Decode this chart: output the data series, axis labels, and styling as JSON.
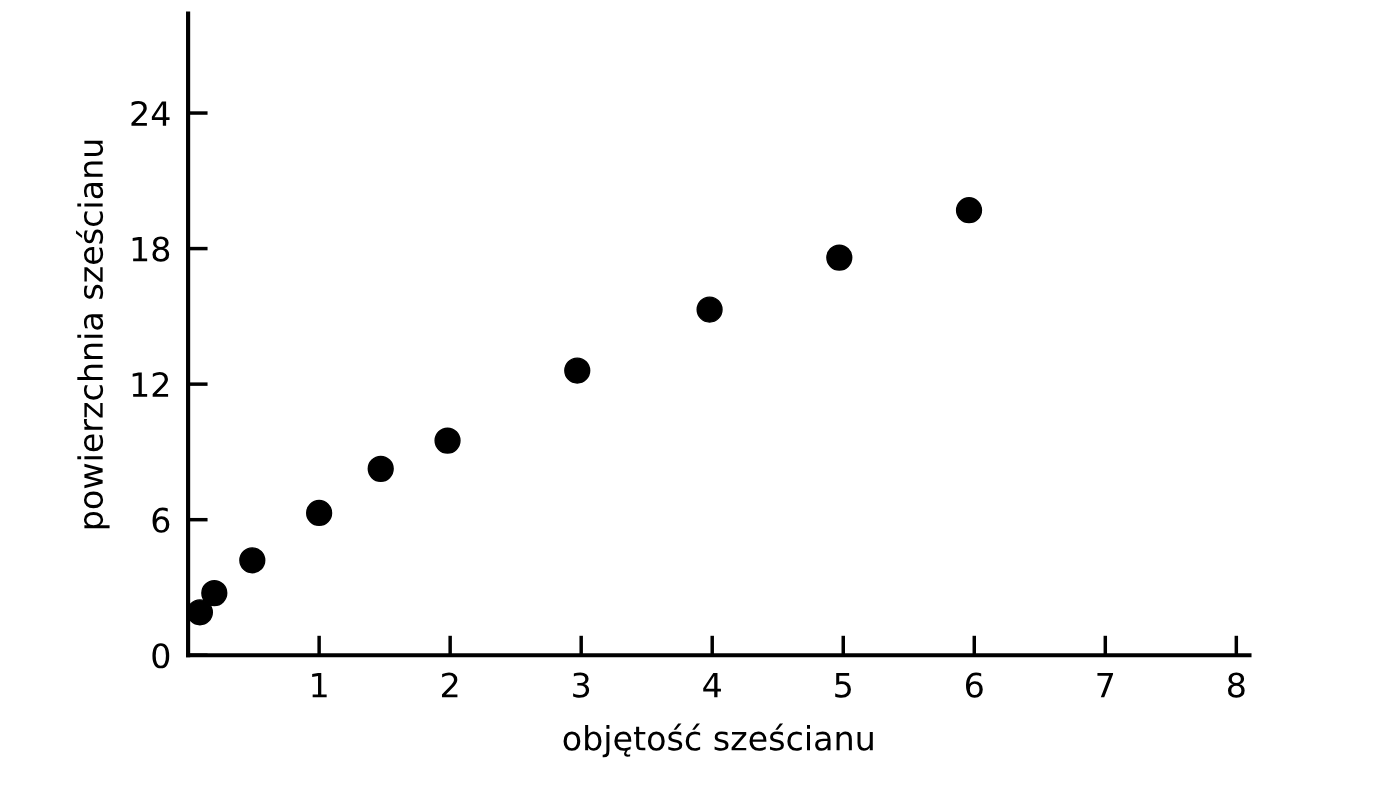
{
  "chart_data": {
    "type": "scatter",
    "xlabel": "objętość sześcianu",
    "ylabel": "powierzchnia sześcianu",
    "x": [
      0.09,
      0.2,
      0.49,
      1.0,
      1.47,
      1.98,
      2.97,
      3.98,
      4.97,
      5.96
    ],
    "series": [
      {
        "color": "#000000",
        "values": [
          1.9,
          2.75,
          4.2,
          6.3,
          8.25,
          9.5,
          12.6,
          15.3,
          17.6,
          19.7
        ]
      }
    ],
    "xlim": [
      0,
      8.1
    ],
    "ylim": [
      0,
      28.4
    ],
    "xticks": [
      1,
      2,
      3,
      4,
      5,
      6,
      7,
      8
    ],
    "yticks": [
      0,
      6,
      12,
      18,
      24
    ],
    "grid": false,
    "legend": false,
    "marker": "circle"
  }
}
